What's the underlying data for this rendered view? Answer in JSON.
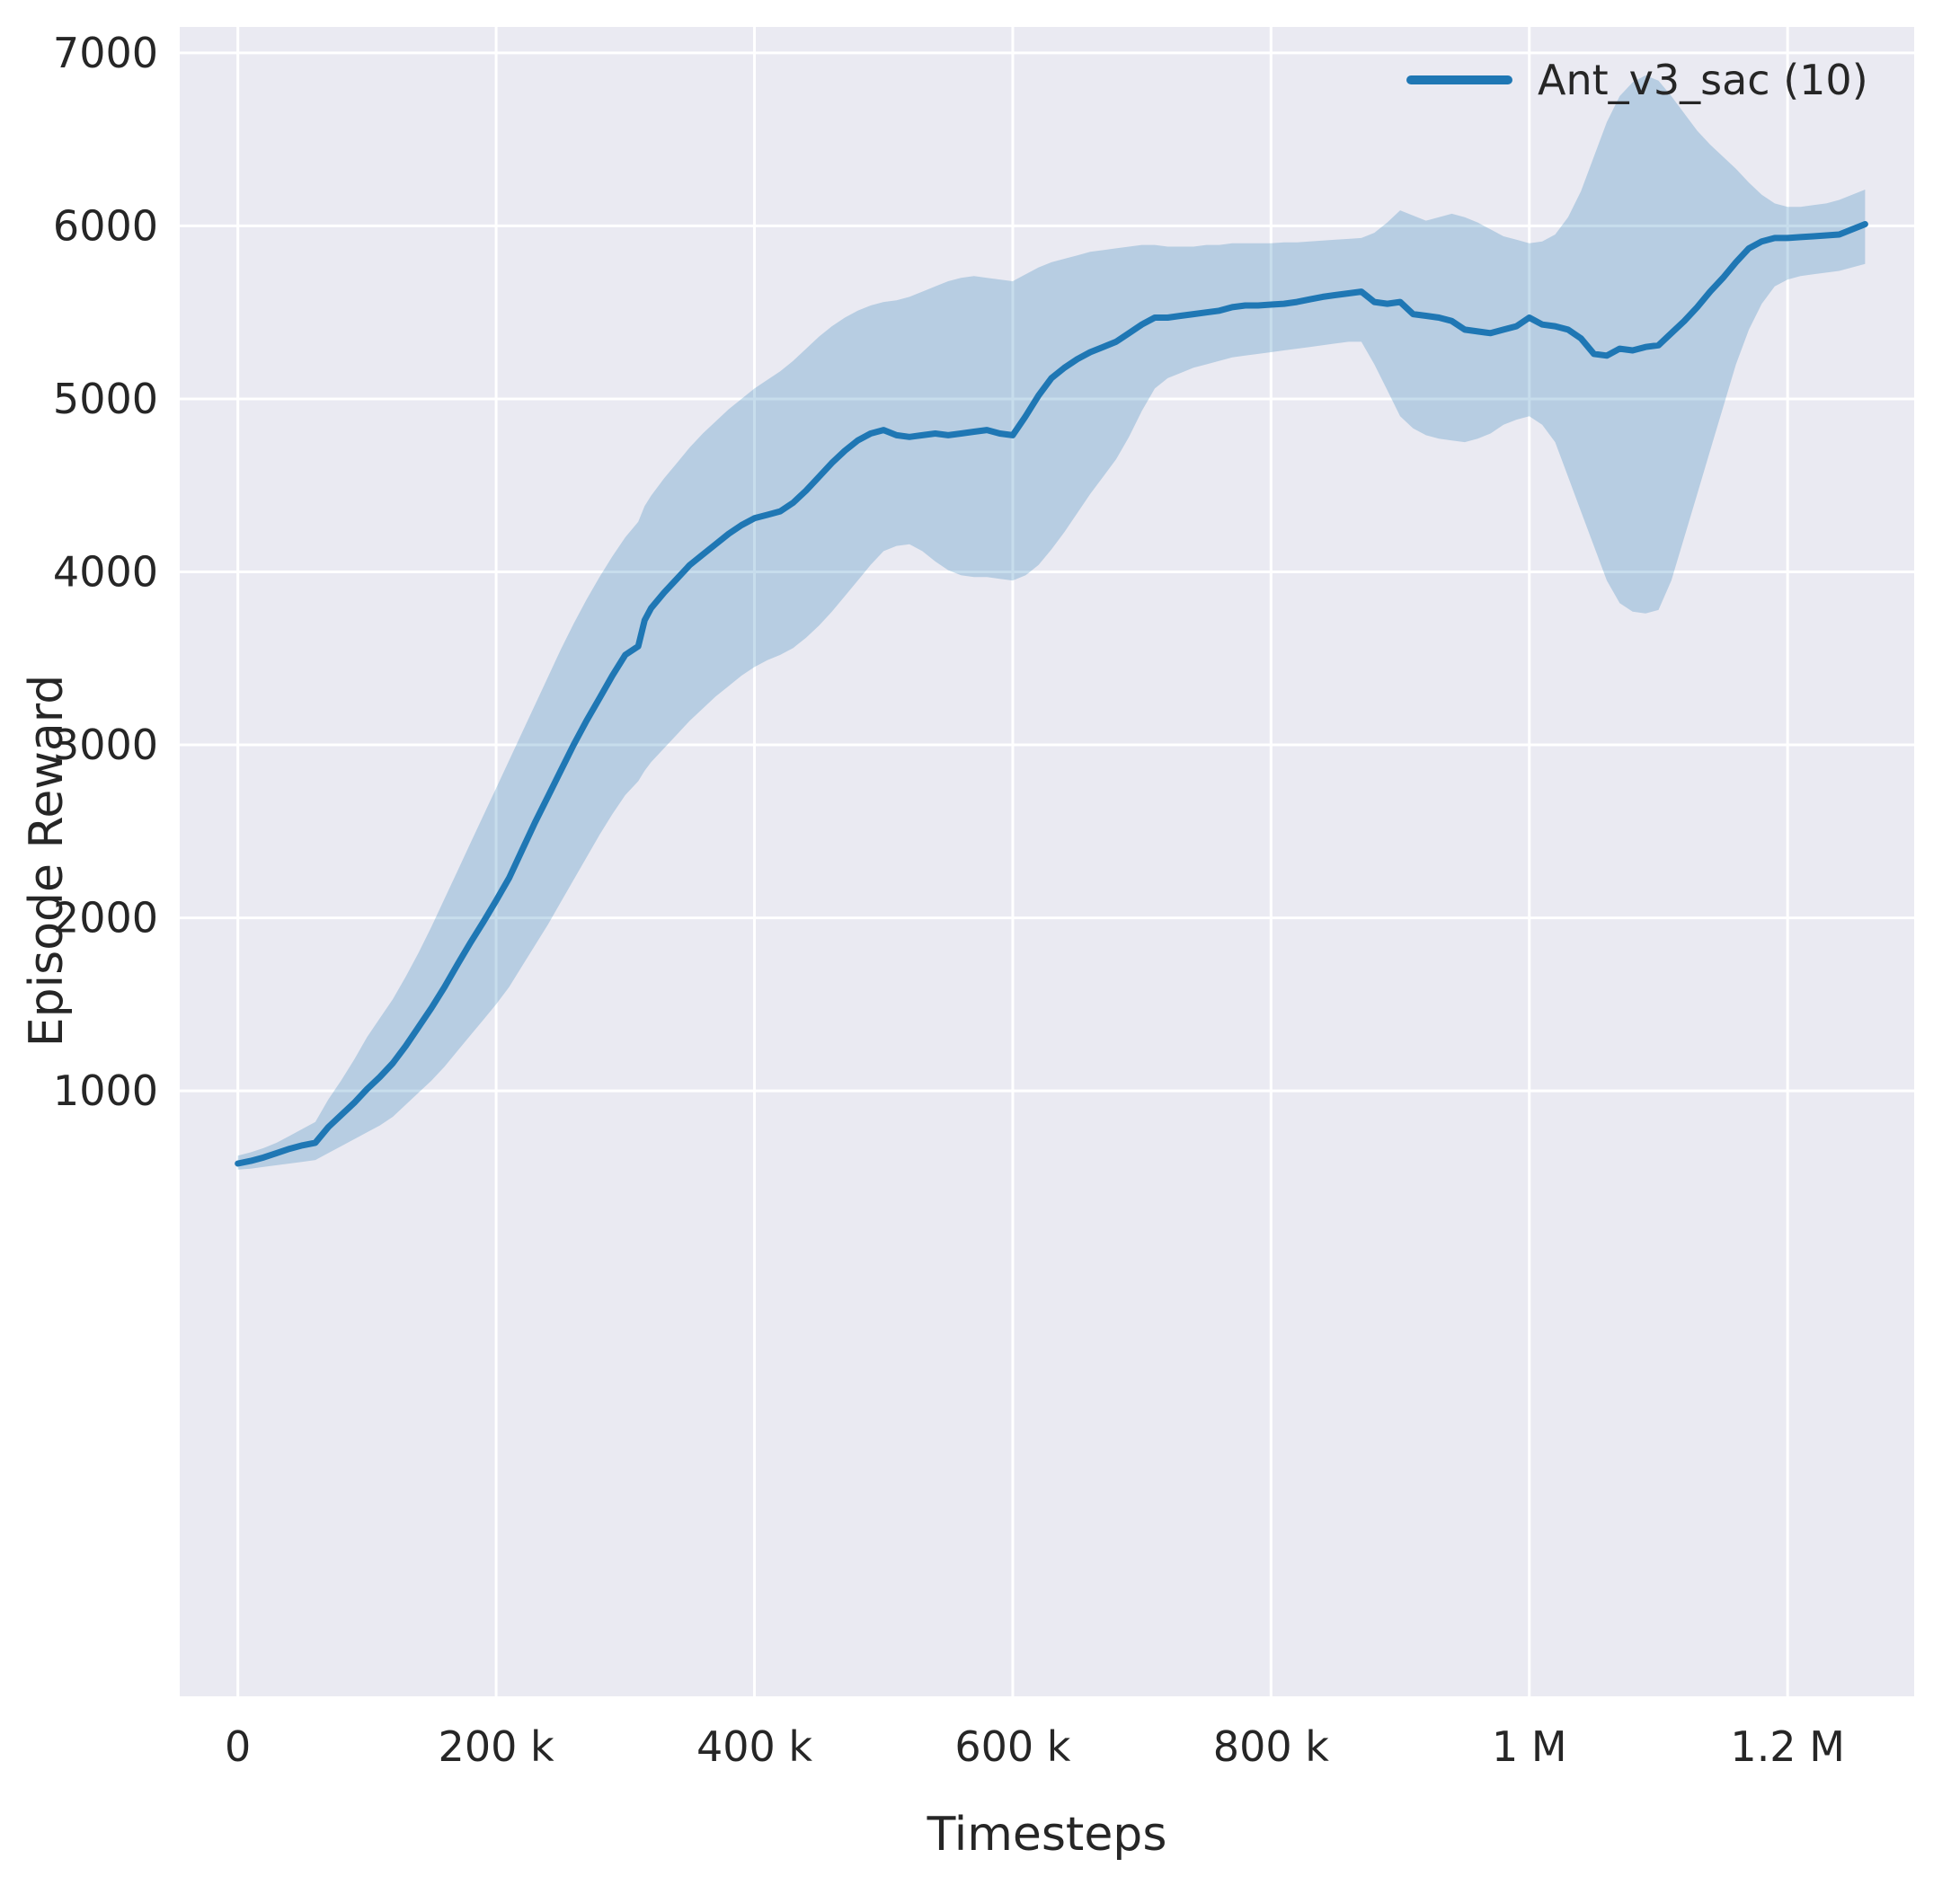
{
  "figure": {
    "background": "#ffffff"
  },
  "chart_data": {
    "type": "line",
    "title": "",
    "xlabel": "Timesteps",
    "ylabel": "Episode Reward",
    "grid": true,
    "legend_position": "upper-right",
    "axes_background": "#eaeaf2",
    "grid_color": "#ffffff",
    "text_color": "#262626",
    "xlim": [
      -45000,
      1298000
    ],
    "ylim": [
      -2500,
      7150
    ],
    "xticks": {
      "values": [
        0,
        200000,
        400000,
        600000,
        800000,
        1000000,
        1200000
      ],
      "labels": [
        "0",
        "200 k",
        "400 k",
        "600 k",
        "800 k",
        "1 M",
        "1.2 M"
      ]
    },
    "yticks": {
      "values": [
        1000,
        2000,
        3000,
        4000,
        5000,
        6000,
        7000
      ],
      "labels": [
        "1000",
        "2000",
        "3000",
        "4000",
        "5000",
        "6000",
        "7000"
      ]
    },
    "series": [
      {
        "name": "Ant_v3_sac (10)",
        "color": "#1f77b4",
        "band_color": "#1f77b4",
        "band_alpha": 0.25,
        "x_unit": 1000,
        "x": [
          0,
          10,
          20,
          30,
          40,
          50,
          60,
          70,
          80,
          90,
          100,
          110,
          120,
          130,
          140,
          150,
          160,
          170,
          180,
          190,
          200,
          210,
          220,
          230,
          240,
          250,
          260,
          270,
          280,
          290,
          300,
          310,
          315,
          320,
          330,
          340,
          350,
          360,
          370,
          380,
          390,
          400,
          410,
          420,
          430,
          440,
          450,
          460,
          470,
          480,
          490,
          500,
          510,
          520,
          530,
          540,
          550,
          560,
          570,
          580,
          590,
          600,
          610,
          620,
          630,
          640,
          650,
          660,
          670,
          680,
          690,
          700,
          710,
          720,
          730,
          740,
          750,
          760,
          770,
          780,
          790,
          800,
          810,
          820,
          830,
          840,
          850,
          860,
          870,
          880,
          890,
          900,
          910,
          920,
          930,
          940,
          950,
          960,
          970,
          980,
          990,
          1000,
          1010,
          1020,
          1030,
          1040,
          1050,
          1060,
          1070,
          1080,
          1090,
          1100,
          1110,
          1120,
          1130,
          1140,
          1150,
          1160,
          1170,
          1180,
          1190,
          1200,
          1210,
          1220,
          1230,
          1240,
          1250,
          1260
        ],
        "mean": [
          580,
          595,
          615,
          640,
          665,
          685,
          700,
          790,
          860,
          930,
          1010,
          1080,
          1160,
          1260,
          1370,
          1480,
          1600,
          1730,
          1855,
          1975,
          2100,
          2230,
          2390,
          2550,
          2700,
          2850,
          3000,
          3140,
          3270,
          3400,
          3520,
          3570,
          3720,
          3790,
          3880,
          3960,
          4040,
          4100,
          4160,
          4220,
          4270,
          4310,
          4330,
          4350,
          4400,
          4470,
          4550,
          4630,
          4700,
          4760,
          4800,
          4820,
          4790,
          4780,
          4790,
          4800,
          4790,
          4800,
          4810,
          4820,
          4800,
          4790,
          4900,
          5020,
          5120,
          5180,
          5230,
          5270,
          5300,
          5330,
          5380,
          5430,
          5470,
          5470,
          5480,
          5490,
          5500,
          5510,
          5530,
          5540,
          5540,
          5545,
          5550,
          5560,
          5575,
          5590,
          5600,
          5610,
          5620,
          5560,
          5550,
          5560,
          5490,
          5480,
          5470,
          5450,
          5400,
          5390,
          5380,
          5400,
          5420,
          5470,
          5430,
          5420,
          5400,
          5350,
          5260,
          5250,
          5290,
          5280,
          5300,
          5310,
          5380,
          5450,
          5530,
          5620,
          5700,
          5790,
          5870,
          5910,
          5930,
          5930,
          5935,
          5940,
          5945,
          5950,
          5980,
          6010
        ],
        "lower": [
          545,
          550,
          560,
          570,
          580,
          590,
          600,
          640,
          680,
          720,
          760,
          800,
          850,
          920,
          990,
          1060,
          1140,
          1230,
          1320,
          1410,
          1500,
          1600,
          1720,
          1840,
          1960,
          2090,
          2220,
          2350,
          2480,
          2600,
          2710,
          2790,
          2850,
          2900,
          2980,
          3060,
          3140,
          3210,
          3280,
          3340,
          3400,
          3450,
          3490,
          3520,
          3560,
          3620,
          3690,
          3770,
          3860,
          3950,
          4040,
          4120,
          4150,
          4160,
          4120,
          4060,
          4010,
          3980,
          3970,
          3970,
          3960,
          3950,
          3980,
          4040,
          4130,
          4230,
          4340,
          4450,
          4550,
          4650,
          4780,
          4930,
          5060,
          5120,
          5150,
          5180,
          5200,
          5220,
          5240,
          5250,
          5260,
          5270,
          5280,
          5290,
          5300,
          5310,
          5320,
          5330,
          5330,
          5200,
          5050,
          4900,
          4830,
          4790,
          4770,
          4760,
          4750,
          4770,
          4800,
          4850,
          4880,
          4900,
          4850,
          4750,
          4550,
          4350,
          4150,
          3950,
          3820,
          3770,
          3760,
          3780,
          3950,
          4200,
          4450,
          4700,
          4950,
          5200,
          5400,
          5550,
          5650,
          5690,
          5710,
          5720,
          5730,
          5740,
          5760,
          5780
        ],
        "upper": [
          625,
          645,
          670,
          700,
          740,
          780,
          820,
          950,
          1060,
          1180,
          1310,
          1420,
          1530,
          1660,
          1800,
          1950,
          2110,
          2270,
          2430,
          2590,
          2750,
          2910,
          3070,
          3230,
          3390,
          3550,
          3700,
          3840,
          3970,
          4090,
          4200,
          4290,
          4380,
          4440,
          4540,
          4630,
          4720,
          4800,
          4870,
          4940,
          5000,
          5060,
          5110,
          5160,
          5220,
          5290,
          5360,
          5420,
          5470,
          5510,
          5540,
          5560,
          5570,
          5590,
          5620,
          5650,
          5680,
          5700,
          5710,
          5700,
          5690,
          5680,
          5720,
          5760,
          5790,
          5810,
          5830,
          5850,
          5860,
          5870,
          5880,
          5890,
          5890,
          5880,
          5880,
          5880,
          5890,
          5890,
          5900,
          5900,
          5900,
          5900,
          5905,
          5905,
          5910,
          5915,
          5920,
          5925,
          5930,
          5960,
          6020,
          6090,
          6060,
          6030,
          6050,
          6070,
          6050,
          6020,
          5980,
          5940,
          5920,
          5900,
          5910,
          5950,
          6050,
          6200,
          6400,
          6600,
          6750,
          6830,
          6870,
          6840,
          6750,
          6650,
          6550,
          6470,
          6400,
          6330,
          6250,
          6180,
          6130,
          6110,
          6110,
          6120,
          6130,
          6150,
          6180,
          6210
        ]
      }
    ]
  }
}
